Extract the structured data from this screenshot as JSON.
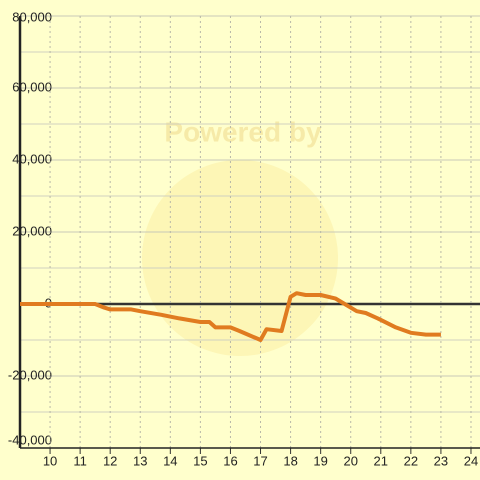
{
  "chart_data": {
    "type": "line",
    "watermark": "Powered by",
    "x": [
      9,
      11.5,
      11.8,
      12,
      12.7,
      13,
      13.7,
      14.3,
      15,
      15.3,
      15.5,
      16,
      16.3,
      17,
      17.2,
      17.7,
      18,
      18.2,
      18.5,
      19,
      19.5,
      19.8,
      20.2,
      20.5,
      20.9,
      21.5,
      22,
      22.5,
      23
    ],
    "series": [
      {
        "color": "#e07b20",
        "values": [
          0,
          0,
          -1000,
          -1500,
          -1500,
          -2000,
          -3000,
          -4000,
          -5000,
          -5000,
          -6500,
          -6500,
          -7500,
          -10000,
          -7000,
          -7500,
          2000,
          3000,
          2500,
          2500,
          1500,
          0,
          -2000,
          -2500,
          -4000,
          -6500,
          -8000,
          -8500,
          -8500
        ]
      }
    ],
    "xlim": [
      9,
      24.3
    ],
    "xticks": [
      10,
      11,
      12,
      13,
      14,
      15,
      16,
      17,
      18,
      19,
      20,
      21,
      22,
      23,
      24
    ],
    "ylim": [
      -40000,
      80000
    ],
    "yticks": [
      {
        "value": -40000,
        "label": "-40,000"
      },
      {
        "value": -20000,
        "label": "-20,000"
      },
      {
        "value": 0,
        "label": "0"
      },
      {
        "value": 20000,
        "label": "20,000"
      },
      {
        "value": 40000,
        "label": "40,000"
      },
      {
        "value": 60000,
        "label": "60,000"
      },
      {
        "value": 80000,
        "label": "80,000"
      }
    ],
    "minor_ygrid": [
      -30000,
      -10000,
      10000,
      30000,
      50000,
      70000
    ],
    "grid": true
  }
}
